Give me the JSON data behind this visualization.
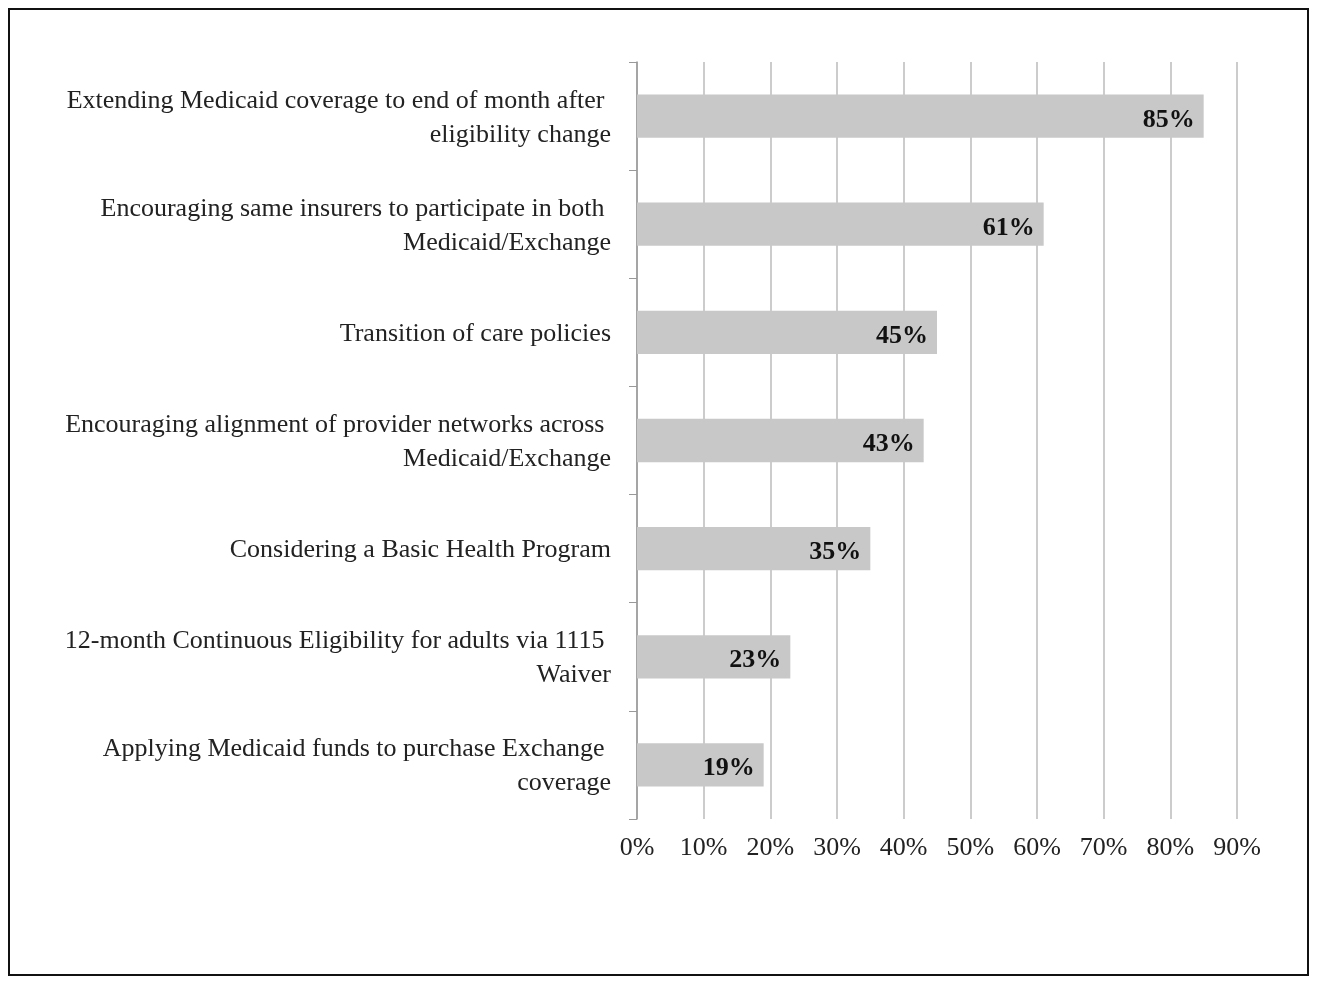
{
  "chart_data": {
    "type": "bar",
    "orientation": "horizontal",
    "categories": [
      "Extending Medicaid coverage to end of month after eligibility change",
      "Encouraging same insurers to participate in both Medicaid/Exchange",
      "Transition of care policies",
      "Encouraging alignment of provider networks across Medicaid/Exchange",
      "Considering a Basic Health Program",
      "12-month Continuous Eligibility for adults via 1115 Waiver",
      "Applying Medicaid funds to purchase Exchange coverage"
    ],
    "values": [
      85,
      61,
      45,
      43,
      35,
      23,
      19
    ],
    "value_labels": [
      "85%",
      "61%",
      "45%",
      "43%",
      "35%",
      "23%",
      "19%"
    ],
    "color": "#c8c8c8",
    "xlim": [
      0,
      90
    ],
    "xticks": [
      {
        "value": 0,
        "label": "0%"
      },
      {
        "value": 10,
        "label": "10%"
      },
      {
        "value": 20,
        "label": "20%"
      },
      {
        "value": 30,
        "label": "30%"
      },
      {
        "value": 40,
        "label": "40%"
      },
      {
        "value": 50,
        "label": "50%"
      },
      {
        "value": 60,
        "label": "60%"
      },
      {
        "value": 70,
        "label": "70%"
      },
      {
        "value": 80,
        "label": "80%"
      },
      {
        "value": 90,
        "label": "90%"
      }
    ],
    "grid": "x"
  }
}
